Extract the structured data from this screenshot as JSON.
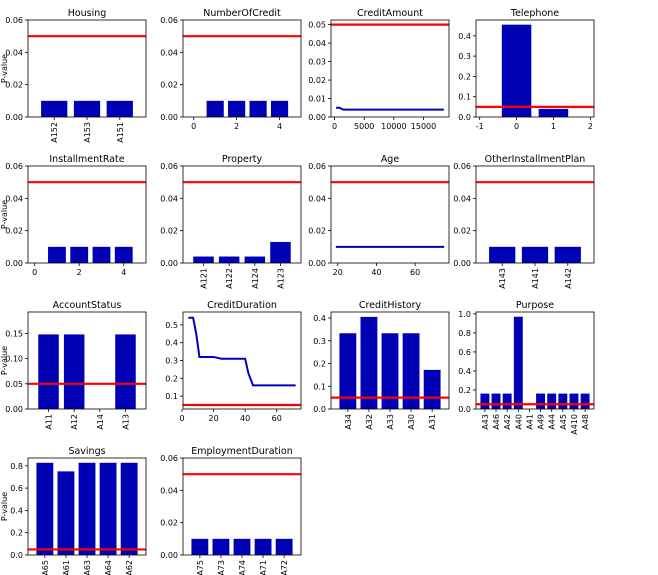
{
  "figure": {
    "ylabel": "P-value",
    "bar_color": "#0000b4",
    "line_color": "#ff0000",
    "threshold": 0.05
  },
  "chart_data": [
    {
      "type": "bar",
      "title": "Housing",
      "ylabel": "P-value",
      "categories": [
        "A152",
        "A153",
        "A151"
      ],
      "values": [
        0.01,
        0.01,
        0.01
      ],
      "yticks": [
        "0.00",
        "0.02",
        "0.04",
        "0.06"
      ],
      "ylim": [
        0,
        0.06
      ],
      "threshold": 0.05,
      "cat_labels_vertical": true
    },
    {
      "type": "bar",
      "title": "NumberOfCredit",
      "x": [
        1,
        2,
        3,
        4
      ],
      "values": [
        0.01,
        0.01,
        0.01,
        0.01
      ],
      "xticks": [
        0,
        2,
        4
      ],
      "xlim": [
        -0.5,
        5
      ],
      "yticks": [
        "0.00",
        "0.02",
        "0.04",
        "0.06"
      ],
      "ylim": [
        0,
        0.06
      ],
      "threshold": 0.05
    },
    {
      "type": "line",
      "title": "CreditAmount",
      "x": [
        250,
        800,
        1500,
        2500,
        5000,
        10000,
        15000,
        18424
      ],
      "values": [
        0.005,
        0.005,
        0.004,
        0.004,
        0.004,
        0.004,
        0.004,
        0.004
      ],
      "xticks": [
        0,
        5000,
        10000,
        15000
      ],
      "xlim": [
        -600,
        19300
      ],
      "yticks": [
        "0.00",
        "0.01",
        "0.02",
        "0.03",
        "0.04",
        "0.05"
      ],
      "ylim": [
        0,
        0.0525
      ],
      "threshold": 0.05
    },
    {
      "type": "bar",
      "title": "Telephone",
      "x": [
        0,
        1
      ],
      "values": [
        0.455,
        0.04
      ],
      "xticks": [
        -1,
        0,
        1,
        2
      ],
      "xlim": [
        -1.1,
        2.1
      ],
      "yticks": [
        "0.0",
        "0.1",
        "0.2",
        "0.3",
        "0.4"
      ],
      "ylim": [
        0,
        0.478
      ],
      "threshold": 0.05
    },
    {
      "type": "bar",
      "title": "InstallmentRate",
      "ylabel": "P-value",
      "x": [
        1,
        2,
        3,
        4
      ],
      "values": [
        0.01,
        0.01,
        0.01,
        0.01
      ],
      "xticks": [
        0,
        2,
        4
      ],
      "xlim": [
        -0.3,
        5
      ],
      "yticks": [
        "0.00",
        "0.02",
        "0.04",
        "0.06"
      ],
      "ylim": [
        0,
        0.06
      ],
      "threshold": 0.05
    },
    {
      "type": "bar",
      "title": "Property",
      "categories": [
        "A121",
        "A122",
        "A124",
        "A123"
      ],
      "values": [
        0.004,
        0.004,
        0.004,
        0.013
      ],
      "yticks": [
        "0.00",
        "0.02",
        "0.04",
        "0.06"
      ],
      "ylim": [
        0,
        0.06
      ],
      "threshold": 0.05,
      "cat_labels_vertical": true
    },
    {
      "type": "line",
      "title": "Age",
      "x": [
        19,
        75
      ],
      "values": [
        0.01,
        0.01
      ],
      "xticks": [
        20,
        40,
        60
      ],
      "xlim": [
        16.5,
        77.5
      ],
      "yticks": [
        "0.00",
        "0.02",
        "0.04",
        "0.06"
      ],
      "ylim": [
        0,
        0.06
      ],
      "threshold": 0.05
    },
    {
      "type": "bar",
      "title": "OtherInstallmentPlan",
      "categories": [
        "A143",
        "A141",
        "A142"
      ],
      "values": [
        0.01,
        0.01,
        0.01
      ],
      "yticks": [
        "0.00",
        "0.02",
        "0.04",
        "0.06"
      ],
      "ylim": [
        0,
        0.06
      ],
      "threshold": 0.05,
      "cat_labels_vertical": true
    },
    {
      "type": "bar",
      "title": "AccountStatus",
      "ylabel": "P-value",
      "categories": [
        "A11",
        "A12",
        "A14",
        "A13"
      ],
      "values": [
        0.148,
        0.148,
        0.0,
        0.148
      ],
      "yticks": [
        "0.00",
        "0.05",
        "0.10",
        "0.15"
      ],
      "ylim": [
        0,
        0.1925
      ],
      "threshold": 0.05,
      "cat_labels_vertical": true
    },
    {
      "type": "line",
      "title": "CreditDuration",
      "x": [
        4,
        7,
        9,
        11,
        15,
        20,
        25,
        30,
        36,
        40,
        42,
        45,
        60,
        72
      ],
      "values": [
        0.54,
        0.54,
        0.45,
        0.32,
        0.32,
        0.32,
        0.31,
        0.31,
        0.31,
        0.31,
        0.23,
        0.16,
        0.16,
        0.16
      ],
      "xticks": [
        0,
        20,
        40,
        60
      ],
      "xlim": [
        0.6,
        75.4
      ],
      "yticks": [
        "0.1",
        "0.2",
        "0.3",
        "0.4",
        "0.5"
      ],
      "ylim": [
        0.0275,
        0.5725
      ],
      "threshold": 0.05
    },
    {
      "type": "bar",
      "title": "CreditHistory",
      "categories": [
        "A34",
        "A32",
        "A33",
        "A30",
        "A31"
      ],
      "values": [
        0.333,
        0.405,
        0.333,
        0.333,
        0.172
      ],
      "yticks": [
        "0.0",
        "0.1",
        "0.2",
        "0.3",
        "0.4"
      ],
      "ylim": [
        0,
        0.4265
      ],
      "threshold": 0.05,
      "cat_labels_vertical": true
    },
    {
      "type": "bar",
      "title": "Purpose",
      "categories": [
        "A43",
        "A46",
        "A42",
        "A40",
        "A41",
        "A49",
        "A44",
        "A45",
        "A410",
        "A48"
      ],
      "values": [
        0.162,
        0.162,
        0.162,
        0.97,
        0.0,
        0.162,
        0.162,
        0.162,
        0.162,
        0.162
      ],
      "yticks": [
        "0.0",
        "0.2",
        "0.4",
        "0.6",
        "0.8",
        "1.0"
      ],
      "ylim": [
        0,
        1.02
      ],
      "threshold": 0.05,
      "cat_labels_vertical": true
    },
    {
      "type": "bar",
      "title": "Savings",
      "ylabel": "P-value",
      "categories": [
        "A65",
        "A61",
        "A63",
        "A64",
        "A62"
      ],
      "values": [
        0.827,
        0.75,
        0.827,
        0.827,
        0.827
      ],
      "yticks": [
        "0.0",
        "0.2",
        "0.4",
        "0.6",
        "0.8"
      ],
      "ylim": [
        0,
        0.87
      ],
      "threshold": 0.05,
      "cat_labels_vertical": true
    },
    {
      "type": "bar",
      "title": "EmploymentDuration",
      "categories": [
        "A75",
        "A73",
        "A74",
        "A71",
        "A72"
      ],
      "values": [
        0.01,
        0.01,
        0.01,
        0.01,
        0.01
      ],
      "yticks": [
        "0.00",
        "0.02",
        "0.04",
        "0.06"
      ],
      "ylim": [
        0,
        0.06
      ],
      "threshold": 0.05,
      "cat_labels_vertical": true
    }
  ]
}
